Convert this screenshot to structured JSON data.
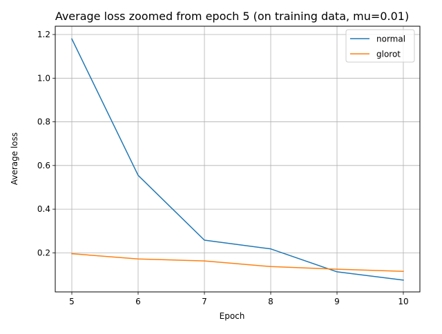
{
  "chart_data": {
    "type": "line",
    "title": "Average loss zoomed from epoch 5 (on training data, mu=0.01)",
    "xlabel": "Epoch",
    "ylabel": "Average loss",
    "x": [
      5,
      6,
      7,
      8,
      9,
      10
    ],
    "xticks": [
      "5",
      "6",
      "7",
      "8",
      "9",
      "10"
    ],
    "yticks": [
      "0.2",
      "0.4",
      "0.6",
      "0.8",
      "1.0",
      "1.2"
    ],
    "xlim": [
      4.75,
      10.25
    ],
    "ylim": [
      0.021,
      1.238
    ],
    "grid": true,
    "legend_position": "top-right",
    "series": [
      {
        "name": "normal",
        "color": "#1f77b4",
        "values": [
          1.18,
          0.555,
          0.258,
          0.218,
          0.113,
          0.075
        ]
      },
      {
        "name": "glorot",
        "color": "#ff7f0e",
        "values": [
          0.196,
          0.172,
          0.163,
          0.137,
          0.125,
          0.115
        ]
      }
    ]
  }
}
